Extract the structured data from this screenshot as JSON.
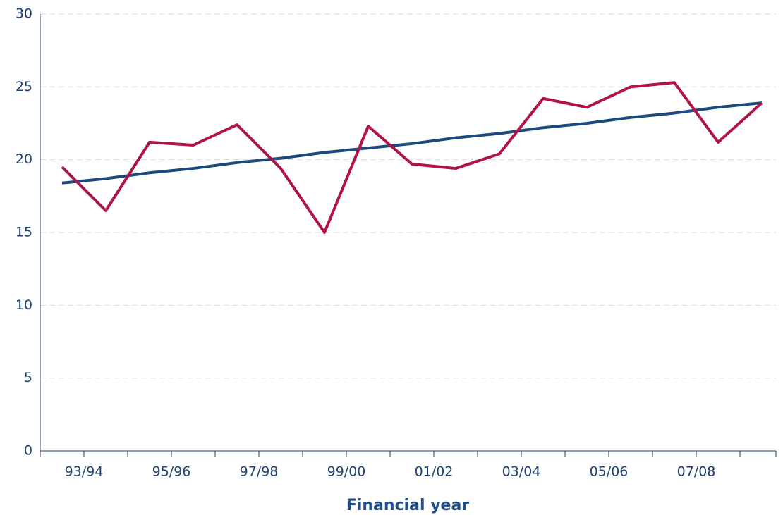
{
  "chart_data": {
    "type": "line",
    "x_label": "Financial year",
    "categories": [
      "93/94",
      null,
      "95/96",
      null,
      "97/98",
      null,
      "99/00",
      null,
      "01/02",
      null,
      "03/04",
      null,
      "05/06",
      null,
      "07/08",
      null,
      null
    ],
    "series": [
      {
        "color": "#b0124a",
        "values": [
          19.5,
          16.5,
          21.2,
          21.0,
          22.4,
          19.4,
          15.0,
          22.3,
          19.7,
          19.4,
          20.4,
          24.2,
          23.6,
          25.0,
          25.3,
          21.2,
          23.9
        ]
      },
      {
        "color": "#1d4a7e",
        "values": [
          18.4,
          18.7,
          19.1,
          19.4,
          19.8,
          20.1,
          20.5,
          20.8,
          21.1,
          21.5,
          21.8,
          22.2,
          22.5,
          22.9,
          23.2,
          23.6,
          23.9
        ]
      }
    ],
    "ylim": [
      0,
      30
    ],
    "yticks": [
      0,
      5,
      10,
      15,
      20,
      25,
      30
    ],
    "grid": true
  }
}
